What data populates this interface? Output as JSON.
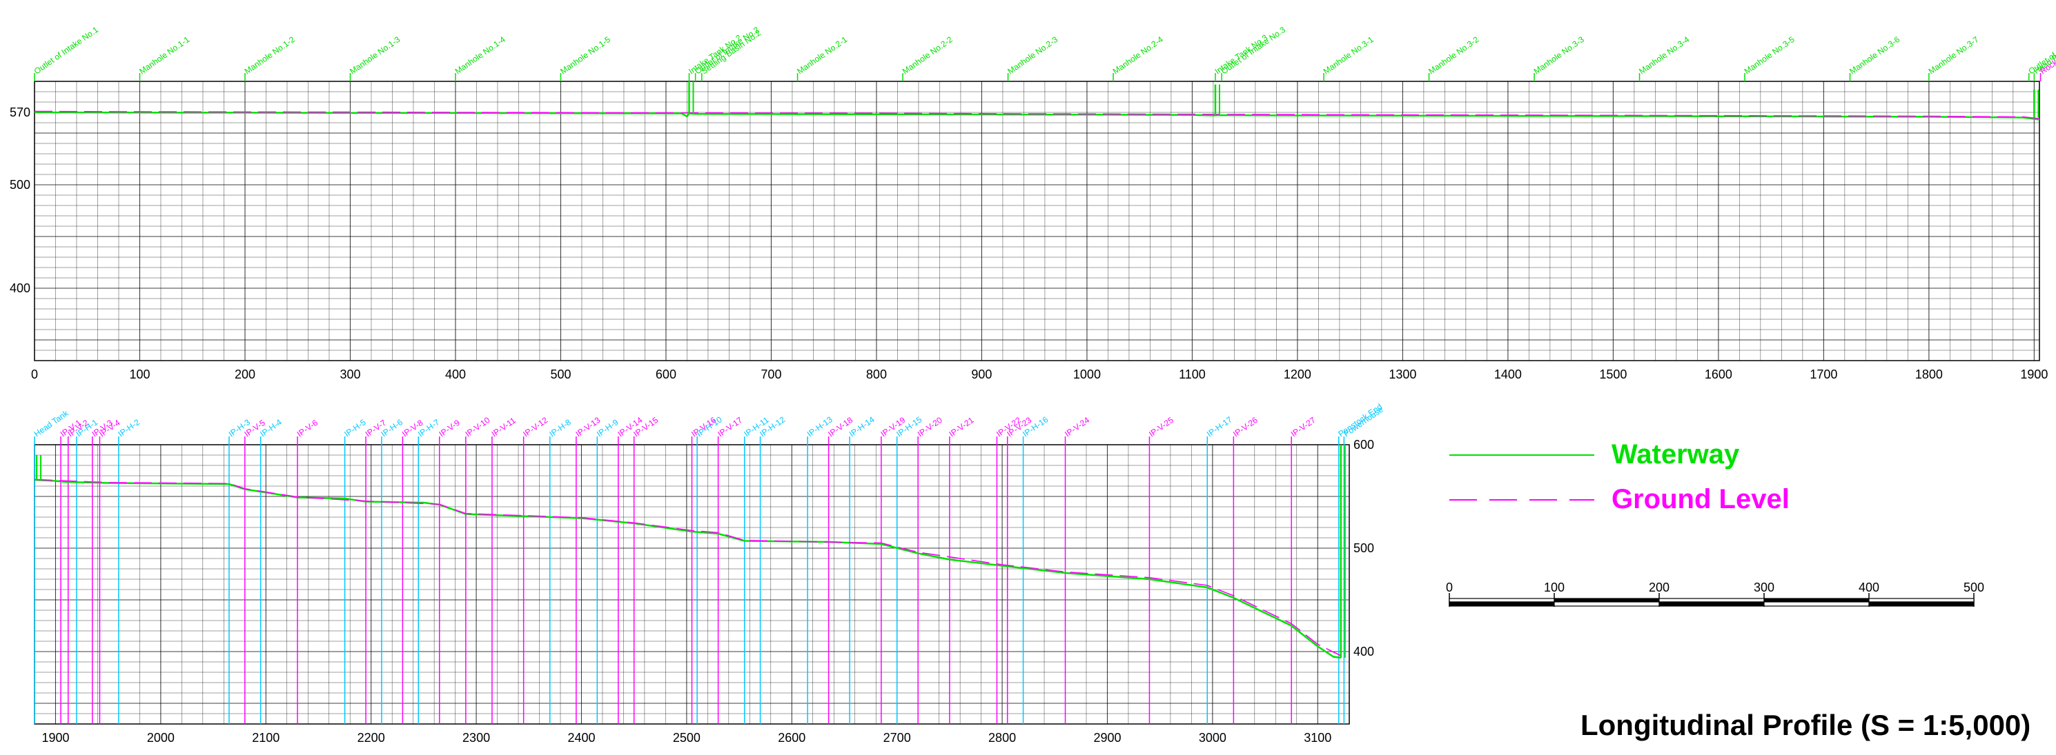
{
  "colors": {
    "waterway": "#00e000",
    "ground": "#ff00ff",
    "grid": "#000000",
    "cyan": "#00c8ff",
    "text": "#000000"
  },
  "top_markers": [
    {
      "label": "Outlet of Intake No.1",
      "x": 0
    },
    {
      "label": "Manhole No.1-1",
      "x": 100
    },
    {
      "label": "Manhole No.1-2",
      "x": 200
    },
    {
      "label": "Manhole No.1-3",
      "x": 300
    },
    {
      "label": "Manhole No.1-4",
      "x": 400
    },
    {
      "label": "Manhole No.1-5",
      "x": 500
    },
    {
      "label": "Intake Tank No.2",
      "x": 622
    },
    {
      "label": "Outlet of Intake No.2",
      "x": 628
    },
    {
      "label": "Settling Basin No.2",
      "x": 634
    },
    {
      "label": "Manhole No.2-1",
      "x": 725
    },
    {
      "label": "Manhole No.2-2",
      "x": 825
    },
    {
      "label": "Manhole No.2-3",
      "x": 925
    },
    {
      "label": "Manhole No.2-4",
      "x": 1025
    },
    {
      "label": "Intake Tank No.3",
      "x": 1122
    },
    {
      "label": "Outlet of Intake No.3",
      "x": 1128
    },
    {
      "label": "Manhole No.3-1",
      "x": 1225
    },
    {
      "label": "Manhole No.3-2",
      "x": 1325
    },
    {
      "label": "Manhole No.3-3",
      "x": 1425
    },
    {
      "label": "Manhole No.3-4",
      "x": 1525
    },
    {
      "label": "Manhole No.3-5",
      "x": 1625
    },
    {
      "label": "Manhole No.3-6",
      "x": 1725
    },
    {
      "label": "Manhole No.3-7",
      "x": 1800
    },
    {
      "label": "Outlet of Head Tank",
      "x": 1895
    },
    {
      "label": "Head Pond",
      "x": 1900
    },
    {
      "label": "Rock Bolts",
      "x": 1906
    }
  ],
  "bottom_markers": [
    {
      "label": "Head Tank",
      "x": 1880
    },
    {
      "label": "IP-V-1",
      "x": 1905
    },
    {
      "label": "IP-V-2",
      "x": 1912
    },
    {
      "label": "IP-H-1",
      "x": 1920
    },
    {
      "label": "IP-V-3",
      "x": 1935
    },
    {
      "label": "IP-V-4",
      "x": 1942
    },
    {
      "label": "IP-H-2",
      "x": 1960
    },
    {
      "label": "IP-H-3",
      "x": 2065
    },
    {
      "label": "IP-V-5",
      "x": 2080
    },
    {
      "label": "IP-H-4",
      "x": 2095
    },
    {
      "label": "IP-V-6",
      "x": 2130
    },
    {
      "label": "IP-H-5",
      "x": 2175
    },
    {
      "label": "IP-V-7",
      "x": 2195
    },
    {
      "label": "IP-H-6",
      "x": 2210
    },
    {
      "label": "IP-V-8",
      "x": 2230
    },
    {
      "label": "IP-H-7",
      "x": 2245
    },
    {
      "label": "IP-V-9",
      "x": 2265
    },
    {
      "label": "IP-V-10",
      "x": 2290
    },
    {
      "label": "IP-V-11",
      "x": 2315
    },
    {
      "label": "IP-V-12",
      "x": 2345
    },
    {
      "label": "IP-H-8",
      "x": 2370
    },
    {
      "label": "IP-V-13",
      "x": 2395
    },
    {
      "label": "IP-H-9",
      "x": 2415
    },
    {
      "label": "IP-V-14",
      "x": 2435
    },
    {
      "label": "IP-V-15",
      "x": 2450
    },
    {
      "label": "IP-V-16",
      "x": 2505
    },
    {
      "label": "IP-H-10",
      "x": 2510
    },
    {
      "label": "IP-V-17",
      "x": 2530
    },
    {
      "label": "IP-H-11",
      "x": 2555
    },
    {
      "label": "IP-H-12",
      "x": 2570
    },
    {
      "label": "IP-H-13",
      "x": 2615
    },
    {
      "label": "IP-V-18",
      "x": 2635
    },
    {
      "label": "IP-H-14",
      "x": 2655
    },
    {
      "label": "IP-V-19",
      "x": 2685
    },
    {
      "label": "IP-H-15",
      "x": 2700
    },
    {
      "label": "IP-V-20",
      "x": 2720
    },
    {
      "label": "IP-V-21",
      "x": 2750
    },
    {
      "label": "IP-V-22",
      "x": 2795
    },
    {
      "label": "IP-V-23",
      "x": 2805
    },
    {
      "label": "IP-H-16",
      "x": 2820
    },
    {
      "label": "IP-V-24",
      "x": 2860
    },
    {
      "label": "IP-V-25",
      "x": 2940
    },
    {
      "label": "IP-H-17",
      "x": 2995
    },
    {
      "label": "IP-V-26",
      "x": 3020
    },
    {
      "label": "IP-V-27",
      "x": 3075
    },
    {
      "label": "Penstock End",
      "x": 3120
    },
    {
      "label": "Powerhouse",
      "x": 3125
    }
  ],
  "chart_data": [
    {
      "type": "line",
      "xlim": [
        0,
        1905
      ],
      "ylim": [
        330,
        600
      ],
      "x_ticks": [
        0,
        100,
        200,
        300,
        400,
        500,
        600,
        700,
        800,
        900,
        1000,
        1100,
        1200,
        1300,
        1400,
        1500,
        1600,
        1700,
        1800,
        1900
      ],
      "x_tick_labels": [
        "0",
        "100",
        "200",
        "300",
        "400",
        "500",
        "600",
        "700",
        "800",
        "900",
        "1000",
        "1100",
        "1200",
        "1300",
        "1400",
        "1500",
        "1600",
        "1700",
        "1800",
        "1900"
      ],
      "y_ticks": [
        400,
        500,
        570
      ],
      "y_tick_labels": [
        "400",
        "500",
        "570"
      ],
      "series": [
        {
          "name": "Waterway",
          "role": "waterway",
          "points": [
            [
              0,
              570
            ],
            [
              100,
              569.8
            ],
            [
              200,
              569.7
            ],
            [
              300,
              569.5
            ],
            [
              400,
              569.4
            ],
            [
              500,
              569.2
            ],
            [
              615,
              569
            ],
            [
              620,
              566
            ],
            [
              622,
              569
            ],
            [
              628,
              568.5
            ],
            [
              700,
              568.4
            ],
            [
              800,
              568.2
            ],
            [
              900,
              568
            ],
            [
              1000,
              567.8
            ],
            [
              1100,
              567.5
            ],
            [
              1120,
              567
            ],
            [
              1125,
              567.3
            ],
            [
              1200,
              567
            ],
            [
              1300,
              566.8
            ],
            [
              1400,
              566.6
            ],
            [
              1500,
              566.4
            ],
            [
              1600,
              566.2
            ],
            [
              1700,
              566
            ],
            [
              1800,
              565.7
            ],
            [
              1890,
              565
            ],
            [
              1905,
              563
            ]
          ]
        },
        {
          "name": "Ground Level",
          "role": "ground",
          "points": [
            [
              0,
              571
            ],
            [
              100,
              570.6
            ],
            [
              200,
              570.4
            ],
            [
              300,
              570.3
            ],
            [
              400,
              570
            ],
            [
              500,
              569.8
            ],
            [
              615,
              569.4
            ],
            [
              625,
              569.6
            ],
            [
              700,
              569.3
            ],
            [
              800,
              569.1
            ],
            [
              900,
              568.8
            ],
            [
              1000,
              568.5
            ],
            [
              1100,
              568.2
            ],
            [
              1200,
              567.9
            ],
            [
              1300,
              567.6
            ],
            [
              1400,
              567.4
            ],
            [
              1500,
              567.1
            ],
            [
              1600,
              566.9
            ],
            [
              1700,
              566.6
            ],
            [
              1800,
              566.3
            ],
            [
              1890,
              565.6
            ],
            [
              1905,
              564
            ]
          ]
        }
      ],
      "vertical_shafts": [
        [
          622,
          569,
          600
        ],
        [
          1122,
          567,
          597
        ],
        [
          1900,
          565,
          592
        ]
      ]
    },
    {
      "type": "line",
      "xlim": [
        1880,
        3130
      ],
      "ylim": [
        330,
        600
      ],
      "x_ticks": [
        1900,
        2000,
        2100,
        2200,
        2300,
        2400,
        2500,
        2600,
        2700,
        2800,
        2900,
        3000,
        3100
      ],
      "x_tick_labels": [
        "1900",
        "2000",
        "2100",
        "2200",
        "2300",
        "2400",
        "2500",
        "2600",
        "2700",
        "2800",
        "2900",
        "3000",
        "3100"
      ],
      "y_ticks": [
        400,
        500,
        600
      ],
      "y_tick_labels": [
        "400",
        "500",
        "600"
      ],
      "series": [
        {
          "name": "Waterway",
          "role": "waterway",
          "points": [
            [
              1880,
              566
            ],
            [
              1900,
              565
            ],
            [
              1910,
              564
            ],
            [
              1950,
              563
            ],
            [
              2065,
              562
            ],
            [
              2080,
              557
            ],
            [
              2130,
              549
            ],
            [
              2175,
              548
            ],
            [
              2195,
              545
            ],
            [
              2250,
              544
            ],
            [
              2265,
              542
            ],
            [
              2290,
              533
            ],
            [
              2315,
              532
            ],
            [
              2400,
              529
            ],
            [
              2450,
              524
            ],
            [
              2505,
              516
            ],
            [
              2530,
              514
            ],
            [
              2555,
              507
            ],
            [
              2635,
              506
            ],
            [
              2685,
              504
            ],
            [
              2720,
              495
            ],
            [
              2750,
              489
            ],
            [
              2800,
              483
            ],
            [
              2860,
              476
            ],
            [
              2940,
              470
            ],
            [
              2995,
              462
            ],
            [
              3020,
              452
            ],
            [
              3075,
              425
            ],
            [
              3100,
              405
            ],
            [
              3115,
              395
            ],
            [
              3122,
              394
            ]
          ]
        },
        {
          "name": "Ground Level",
          "role": "ground",
          "points": [
            [
              1880,
              566.5
            ],
            [
              1900,
              565.5
            ],
            [
              1950,
              563.5
            ],
            [
              2065,
              562.5
            ],
            [
              2080,
              557.5
            ],
            [
              2130,
              549.5
            ],
            [
              2195,
              545.5
            ],
            [
              2265,
              542.5
            ],
            [
              2290,
              533.5
            ],
            [
              2400,
              529.5
            ],
            [
              2450,
              524.5
            ],
            [
              2505,
              517
            ],
            [
              2530,
              515
            ],
            [
              2555,
              507.5
            ],
            [
              2685,
              505
            ],
            [
              2720,
              496
            ],
            [
              2800,
              484
            ],
            [
              2860,
              477
            ],
            [
              2940,
              471.5
            ],
            [
              2995,
              464
            ],
            [
              3020,
              454
            ],
            [
              3075,
              427
            ],
            [
              3100,
              407
            ],
            [
              3122,
              396
            ]
          ]
        }
      ],
      "vertical_shafts": [
        [
          1882,
          566,
          590
        ],
        [
          3122,
          394,
          600
        ]
      ]
    }
  ],
  "legend": {
    "waterway_label": "Waterway",
    "ground_label": "Ground Level"
  },
  "scale_bar": {
    "labels": [
      "0",
      "100",
      "200",
      "300",
      "400",
      "500"
    ]
  },
  "title": "Longitudinal Profile (S = 1:5,000)"
}
